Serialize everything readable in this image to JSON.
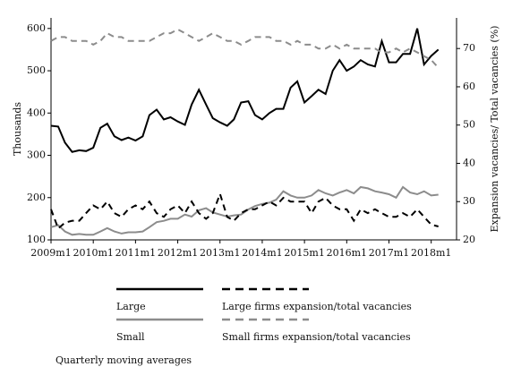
{
  "chart_data": {
    "type": "line",
    "y_label": "Thousands",
    "y2_label": "Expansion vacancies/ Total vacancies  (%)",
    "note": "Quarterly moving averages",
    "x": [
      2009,
      2009.17,
      2009.33,
      2009.5,
      2009.67,
      2009.83,
      2010,
      2010.17,
      2010.33,
      2010.5,
      2010.67,
      2010.83,
      2011,
      2011.17,
      2011.33,
      2011.5,
      2011.67,
      2011.83,
      2012,
      2012.17,
      2012.33,
      2012.5,
      2012.67,
      2012.83,
      2013,
      2013.17,
      2013.33,
      2013.5,
      2013.67,
      2013.83,
      2014,
      2014.17,
      2014.33,
      2014.5,
      2014.67,
      2014.83,
      2015,
      2015.17,
      2015.33,
      2015.5,
      2015.67,
      2015.83,
      2016,
      2016.17,
      2016.33,
      2016.5,
      2016.67,
      2016.83,
      2017,
      2017.17,
      2017.33,
      2017.5,
      2017.67,
      2017.83,
      2018,
      2018.17
    ],
    "xlim": [
      2009,
      2018.6
    ],
    "xticks": [
      {
        "value": 2009,
        "label": "2009m1"
      },
      {
        "value": 2010,
        "label": "2010m1"
      },
      {
        "value": 2011,
        "label": "2011m1"
      },
      {
        "value": 2012,
        "label": "2012m1"
      },
      {
        "value": 2013,
        "label": "2013m1"
      },
      {
        "value": 2014,
        "label": "2014m1"
      },
      {
        "value": 2015,
        "label": "2015m1"
      },
      {
        "value": 2016,
        "label": "2016m1"
      },
      {
        "value": 2017,
        "label": "2017m1"
      },
      {
        "value": 2018,
        "label": "2018m1"
      }
    ],
    "ylim": [
      100,
      625
    ],
    "yticks": [
      100,
      200,
      300,
      400,
      500,
      600
    ],
    "y2lim": [
      20,
      78
    ],
    "y2ticks": [
      20,
      30,
      40,
      50,
      60,
      70
    ],
    "series": [
      {
        "name": "Large",
        "color": "#000000",
        "dash": false,
        "values": [
          370,
          368,
          330,
          308,
          312,
          310,
          318,
          365,
          375,
          345,
          336,
          342,
          335,
          345,
          395,
          408,
          385,
          390,
          380,
          372,
          420,
          455,
          420,
          388,
          378,
          370,
          385,
          425,
          428,
          395,
          385,
          400,
          410,
          410,
          460,
          475,
          425,
          440,
          455,
          445,
          500,
          525,
          500,
          510,
          525,
          515,
          510,
          570,
          520,
          520,
          540,
          540,
          600,
          515,
          535,
          550
        ]
      },
      {
        "name": "Small",
        "color": "#8c8c8c",
        "dash": false,
        "values": [
          130,
          135,
          120,
          112,
          114,
          112,
          112,
          120,
          128,
          120,
          115,
          118,
          118,
          120,
          130,
          142,
          145,
          150,
          150,
          160,
          155,
          170,
          175,
          165,
          160,
          155,
          158,
          160,
          172,
          180,
          185,
          188,
          195,
          215,
          205,
          200,
          200,
          205,
          218,
          210,
          205,
          212,
          218,
          210,
          225,
          222,
          215,
          212,
          208,
          200,
          225,
          212,
          208,
          215,
          205,
          207
        ]
      },
      {
        "name": "Large firms expansion/total vacancies",
        "color": "#000000",
        "dash": true,
        "axis": "y2",
        "values": [
          28,
          23,
          24.5,
          25,
          25,
          27,
          29,
          28,
          30,
          27,
          26,
          28,
          29,
          28,
          30,
          27,
          26,
          28,
          29,
          27,
          30,
          27,
          25.5,
          27,
          32,
          26,
          25,
          27,
          28,
          28,
          29,
          30,
          29,
          31,
          30,
          30,
          30,
          27,
          30,
          31,
          29,
          28,
          28,
          25,
          28,
          27,
          28,
          27,
          26,
          26,
          27,
          26,
          28,
          26,
          24,
          23.5
        ]
      },
      {
        "name": "Small firms expansion/total vacancies",
        "color": "#8c8c8c",
        "dash": true,
        "axis": "y2",
        "values": [
          72,
          73,
          73,
          72,
          72,
          72,
          71,
          72,
          74,
          73,
          73,
          72,
          72,
          72,
          72,
          73,
          74,
          74,
          75,
          74,
          73,
          72,
          73,
          74,
          73,
          72,
          72,
          71,
          72,
          73,
          73,
          73,
          72,
          72,
          71,
          72,
          71,
          71,
          70,
          70,
          71,
          70,
          71,
          70,
          70,
          70,
          70,
          69,
          69,
          70,
          69,
          70,
          69,
          68,
          67,
          65
        ]
      }
    ]
  }
}
